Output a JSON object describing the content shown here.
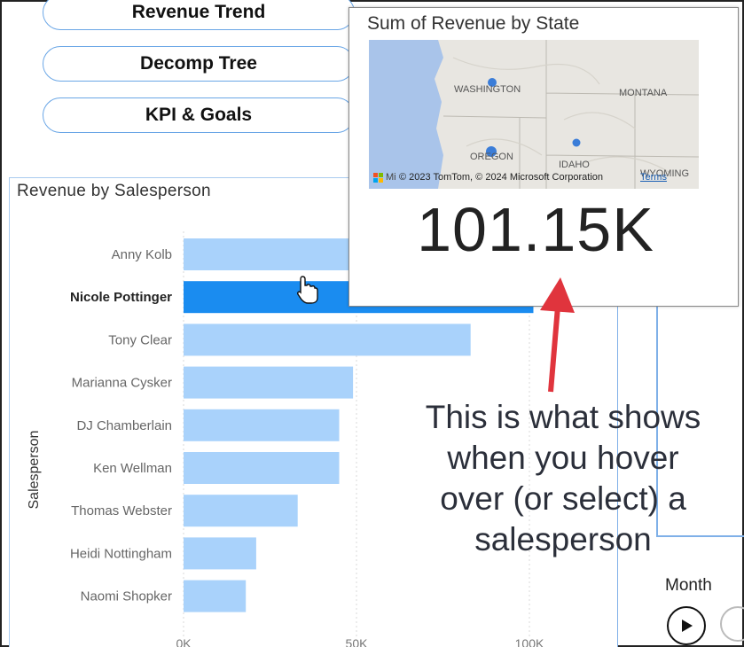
{
  "nav": {
    "revenue_trend": "Revenue Trend",
    "decomp_tree": "Decomp Tree",
    "kpi_goals": "KPI & Goals"
  },
  "chart_panel": {
    "title": "Revenue by Salesperson",
    "ylabel": "Salesperson"
  },
  "tooltip": {
    "title": "Sum of Revenue by State",
    "value": "101.15K",
    "map": {
      "labels": [
        "WASHINGTON",
        "MONTANA",
        "OREGON",
        "IDAHO",
        "WYOMING"
      ],
      "attribution": "© 2023 TomTom, © 2024 Microsoft Corporation",
      "terms": "Terms",
      "brand": "Mi"
    }
  },
  "annotation": "This is what shows when you hover over (or select) a salesperson",
  "month_label": "Month",
  "colors": {
    "bar": "#a9d2fb",
    "bar_selected": "#1a8cf0",
    "accent_border": "#6aa6e6",
    "arrow": "#e0343d"
  },
  "chart_data": {
    "type": "bar",
    "orientation": "horizontal",
    "title": "Revenue by Salesperson",
    "ylabel": "Salesperson",
    "xlabel": "",
    "categories": [
      "Anny Kolb",
      "Nicole Pottinger",
      "Tony Clear",
      "Marianna Cysker",
      "DJ Chamberlain",
      "Ken Wellman",
      "Thomas Webster",
      "Heidi Nottingham",
      "Naomi Shopker"
    ],
    "values": [
      102,
      101.15,
      83,
      49,
      45,
      45,
      33,
      21,
      18
    ],
    "selected": "Nicole Pottinger",
    "xticks": [
      "0K",
      "50K",
      "100K"
    ],
    "xlim": [
      0,
      100
    ]
  }
}
